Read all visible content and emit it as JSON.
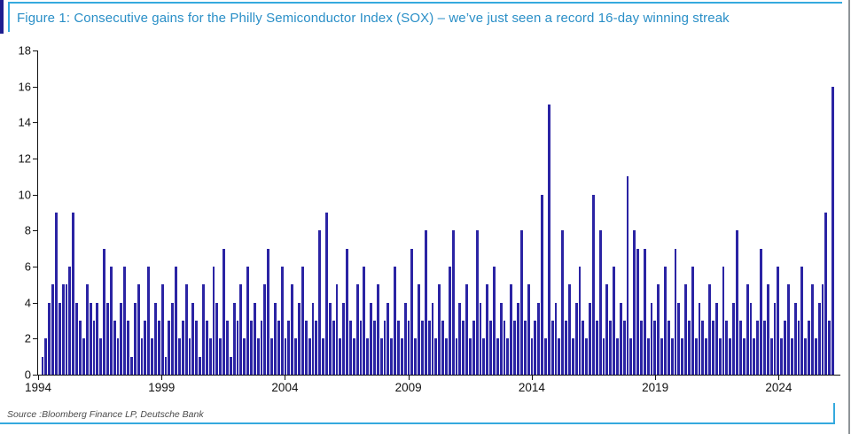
{
  "figure": {
    "title": "Figure 1: Consecutive gains for the Philly Semiconductor Index (SOX) – we’ve just seen a record 16-day winning streak",
    "source": "Source :Bloomberg Finance LP, Deutsche Bank",
    "accent_color": "#35a9de",
    "title_color": "#2a8fc7",
    "bar_color": "#2b24a4",
    "axis_color": "#111111"
  },
  "chart_data": {
    "type": "bar",
    "title": "Consecutive gains for the Philly Semiconductor Index (SOX)",
    "xlabel": "",
    "ylabel": "",
    "ylim": [
      0,
      18
    ],
    "y_ticks": [
      0,
      2,
      4,
      6,
      8,
      10,
      12,
      14,
      16,
      18
    ],
    "x_ticks": [
      1994,
      1999,
      2004,
      2009,
      2014,
      2019,
      2024
    ],
    "x_axis_start": 1994,
    "x_axis_end": 2026.5,
    "grid": false,
    "legend": false,
    "record_value": 16,
    "record_note": "record 16-day winning streak at far right (2025)",
    "notable_peaks": [
      {
        "year": 1994.7,
        "value": 9
      },
      {
        "year": 1995.4,
        "value": 9
      },
      {
        "year": 1996.7,
        "value": 7
      },
      {
        "year": 2001.4,
        "value": 7
      },
      {
        "year": 2003.2,
        "value": 7
      },
      {
        "year": 2005.2,
        "value": 8
      },
      {
        "year": 2005.5,
        "value": 9
      },
      {
        "year": 2006.3,
        "value": 7
      },
      {
        "year": 2008.8,
        "value": 7
      },
      {
        "year": 2009.4,
        "value": 8
      },
      {
        "year": 2010.4,
        "value": 8
      },
      {
        "year": 2011.4,
        "value": 8
      },
      {
        "year": 2013.3,
        "value": 8
      },
      {
        "year": 2014.0,
        "value": 10
      },
      {
        "year": 2014.3,
        "value": 15
      },
      {
        "year": 2014.8,
        "value": 8
      },
      {
        "year": 2016.0,
        "value": 10
      },
      {
        "year": 2016.3,
        "value": 8
      },
      {
        "year": 2017.3,
        "value": 11
      },
      {
        "year": 2017.7,
        "value": 8
      },
      {
        "year": 2019.2,
        "value": 7
      },
      {
        "year": 2021.7,
        "value": 8
      },
      {
        "year": 2022.7,
        "value": 7
      },
      {
        "year": 2025.2,
        "value": 9
      },
      {
        "year": 2025.5,
        "value": 16
      }
    ],
    "values": [
      1,
      2,
      4,
      5,
      9,
      4,
      5,
      5,
      6,
      9,
      4,
      3,
      2,
      5,
      4,
      3,
      4,
      2,
      7,
      4,
      6,
      3,
      2,
      4,
      6,
      3,
      1,
      4,
      5,
      2,
      3,
      6,
      2,
      4,
      3,
      5,
      1,
      3,
      4,
      6,
      2,
      3,
      5,
      2,
      4,
      3,
      1,
      5,
      3,
      2,
      6,
      4,
      2,
      7,
      3,
      1,
      4,
      3,
      5,
      2,
      6,
      3,
      4,
      2,
      3,
      5,
      7,
      2,
      4,
      3,
      6,
      2,
      3,
      5,
      2,
      4,
      6,
      3,
      2,
      4,
      3,
      8,
      2,
      9,
      4,
      3,
      5,
      2,
      4,
      7,
      3,
      2,
      5,
      3,
      6,
      2,
      4,
      3,
      5,
      2,
      3,
      4,
      2,
      6,
      3,
      2,
      4,
      3,
      7,
      2,
      5,
      3,
      8,
      3,
      4,
      2,
      5,
      3,
      2,
      6,
      8,
      2,
      4,
      3,
      5,
      2,
      3,
      8,
      4,
      2,
      5,
      3,
      6,
      2,
      4,
      3,
      2,
      5,
      3,
      4,
      8,
      3,
      5,
      2,
      3,
      4,
      10,
      2,
      15,
      3,
      4,
      2,
      8,
      3,
      5,
      2,
      4,
      6,
      3,
      2,
      4,
      10,
      3,
      8,
      2,
      5,
      3,
      6,
      2,
      4,
      3,
      11,
      2,
      8,
      7,
      3,
      7,
      2,
      4,
      3,
      5,
      2,
      6,
      3,
      2,
      7,
      4,
      2,
      5,
      3,
      6,
      2,
      4,
      3,
      2,
      5,
      3,
      4,
      2,
      6,
      3,
      2,
      4,
      8,
      3,
      2,
      5,
      4,
      2,
      3,
      7,
      3,
      5,
      2,
      4,
      6,
      2,
      3,
      5,
      2,
      4,
      3,
      6,
      2,
      3,
      5,
      2,
      4,
      5,
      9,
      3,
      16
    ]
  }
}
